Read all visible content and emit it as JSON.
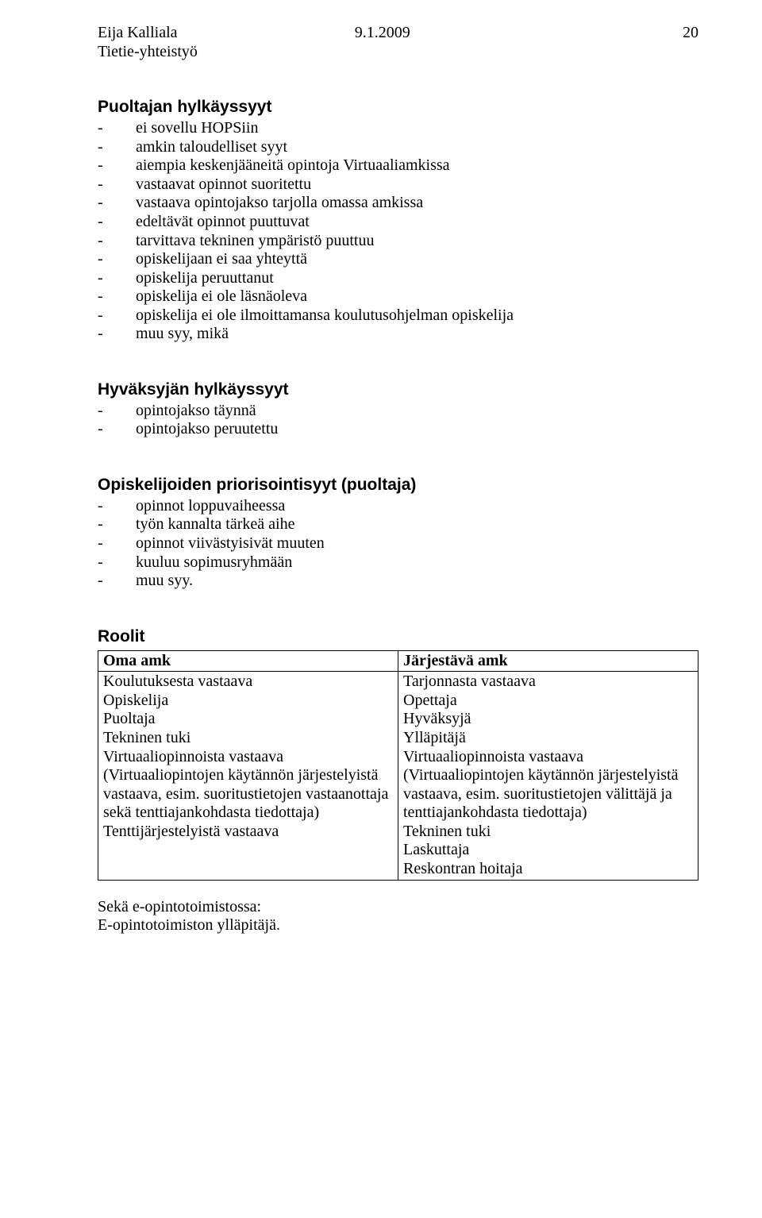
{
  "header": {
    "author": "Eija Kalliala",
    "date": "9.1.2009",
    "page": "20",
    "subtitle": "Tietie-yhteistyö"
  },
  "sections": {
    "puoltajan": {
      "title": "Puoltajan hylkäyssyyt",
      "items": [
        "ei sovellu HOPSiin",
        "amkin taloudelliset syyt",
        "aiempia keskenjääneitä opintoja Virtuaaliamkissa",
        "vastaavat opinnot suoritettu",
        "vastaava opintojakso tarjolla omassa amkissa",
        "edeltävät opinnot puuttuvat",
        "tarvittava tekninen ympäristö puuttuu",
        "opiskelijaan ei saa yhteyttä",
        "opiskelija peruuttanut",
        "opiskelija ei ole läsnäoleva",
        "opiskelija ei ole ilmoittamansa koulutusohjelman opiskelija",
        "muu syy, mikä"
      ]
    },
    "hyvaksyjan": {
      "title": "Hyväksyjän hylkäyssyyt",
      "items": [
        "opintojakso täynnä",
        "opintojakso peruutettu"
      ]
    },
    "priorisointi": {
      "title": "Opiskelijoiden priorisointisyyt (puoltaja)",
      "items": [
        "opinnot loppuvaiheessa",
        "työn kannalta tärkeä aihe",
        "opinnot viivästyisivät muuten",
        "kuuluu sopimusryhmään",
        "muu syy."
      ]
    },
    "roolit": {
      "title": "Roolit",
      "columns": [
        "Oma amk",
        "Järjestävä amk"
      ],
      "rows_left": [
        "Koulutuksesta vastaava",
        "Opiskelija",
        "Puoltaja",
        "Tekninen tuki",
        "Virtuaaliopinnoista vastaava (Virtuaaliopintojen käytännön järjestelyistä vastaava, esim. suoritustietojen vastaanottaja sekä tenttiajankohdasta tiedottaja)",
        "Tenttijärjestelyistä vastaava"
      ],
      "rows_right": [
        "Tarjonnasta vastaava",
        "Opettaja",
        "Hyväksyjä",
        "Ylläpitäjä",
        "Virtuaaliopinnoista vastaava (Virtuaaliopintojen käytännön järjestelyistä vastaava, esim. suoritustietojen välittäjä ja tenttiajankohdasta tiedottaja)",
        "Tekninen tuki",
        "Laskuttaja",
        "Reskontran hoitaja"
      ]
    }
  },
  "footer": {
    "line1": "Sekä e-opintotoimistossa:",
    "line2": "E-opintotoimiston ylläpitäjä."
  }
}
